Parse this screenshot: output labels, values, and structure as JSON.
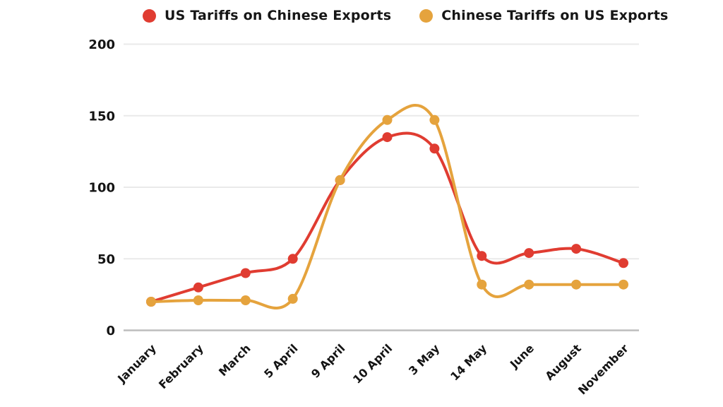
{
  "page": {
    "background": "#ffffff"
  },
  "legend": {
    "items": [
      {
        "label": "US Tariffs on Chinese Exports",
        "color": "#e03c31"
      },
      {
        "label": "Chinese Tariffs on US Exports",
        "color": "#e5a33d"
      }
    ]
  },
  "chart_data": {
    "type": "line",
    "title": "",
    "xlabel": "",
    "ylabel": "",
    "categories": [
      "January",
      "February",
      "March",
      "5 April",
      "9 April",
      "10 April",
      "3 May",
      "14 May",
      "June",
      "August",
      "November"
    ],
    "series": [
      {
        "name": "US Tariffs on Chinese Exports",
        "color": "#e03c31",
        "values": [
          20,
          30,
          40,
          50,
          105,
          135,
          127,
          52,
          54,
          57,
          47
        ]
      },
      {
        "name": "Chinese Tariffs on US Exports",
        "color": "#e5a33d",
        "values": [
          20,
          21,
          21,
          22,
          105,
          147,
          147,
          32,
          32,
          32,
          32
        ]
      }
    ],
    "y_ticks": [
      0,
      50,
      100,
      150,
      200
    ],
    "ylim": [
      0,
      200
    ],
    "grid": true,
    "smooth": true,
    "marker": "circle",
    "legend_position": "top",
    "colors": {
      "grid": "#eaeaea",
      "baseline": "#bdbdbd",
      "tick_label": "#141414"
    }
  }
}
